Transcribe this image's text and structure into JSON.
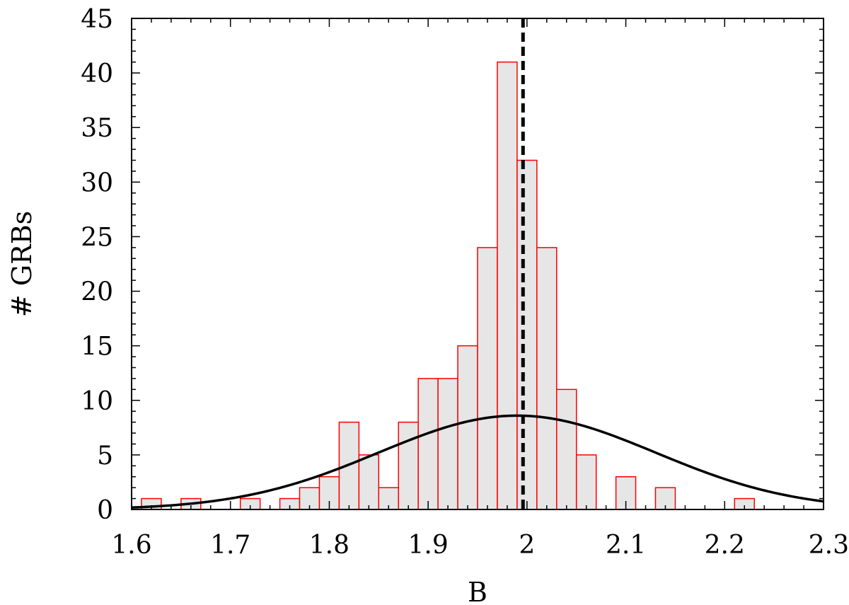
{
  "chart_data": {
    "type": "bar",
    "subtype": "histogram",
    "title": "",
    "xlabel": "B",
    "ylabel": "# GRBs",
    "xlim": [
      1.6,
      2.3
    ],
    "ylim": [
      0,
      45
    ],
    "x_ticks": [
      "1.6",
      "1.7",
      "1.8",
      "1.9",
      "2",
      "2.1",
      "2.2",
      "2.3"
    ],
    "y_ticks": [
      "0",
      "5",
      "10",
      "15",
      "20",
      "25",
      "30",
      "35",
      "40",
      "45"
    ],
    "bin_width": 0.02,
    "bins": [
      {
        "x": 1.62,
        "count": 1
      },
      {
        "x": 1.66,
        "count": 1
      },
      {
        "x": 1.72,
        "count": 1
      },
      {
        "x": 1.76,
        "count": 1
      },
      {
        "x": 1.78,
        "count": 2
      },
      {
        "x": 1.8,
        "count": 3
      },
      {
        "x": 1.82,
        "count": 8
      },
      {
        "x": 1.84,
        "count": 5
      },
      {
        "x": 1.86,
        "count": 2
      },
      {
        "x": 1.88,
        "count": 8
      },
      {
        "x": 1.9,
        "count": 12
      },
      {
        "x": 1.92,
        "count": 12
      },
      {
        "x": 1.94,
        "count": 15
      },
      {
        "x": 1.96,
        "count": 24
      },
      {
        "x": 1.98,
        "count": 41
      },
      {
        "x": 2.0,
        "count": 32
      },
      {
        "x": 2.02,
        "count": 24
      },
      {
        "x": 2.04,
        "count": 11
      },
      {
        "x": 2.06,
        "count": 5
      },
      {
        "x": 2.1,
        "count": 3
      },
      {
        "x": 2.14,
        "count": 2
      },
      {
        "x": 2.22,
        "count": 1
      }
    ],
    "gaussian_curve": {
      "mean": 1.99,
      "sigma": 0.14,
      "peak": 8.6
    },
    "vertical_line": {
      "x": 1.996,
      "style": "dashed"
    },
    "grid": false,
    "colors": {
      "bar_fill": "#e6e6e6",
      "bar_edge": "#ff0000",
      "curve": "#000000",
      "vline": "#000000"
    }
  }
}
